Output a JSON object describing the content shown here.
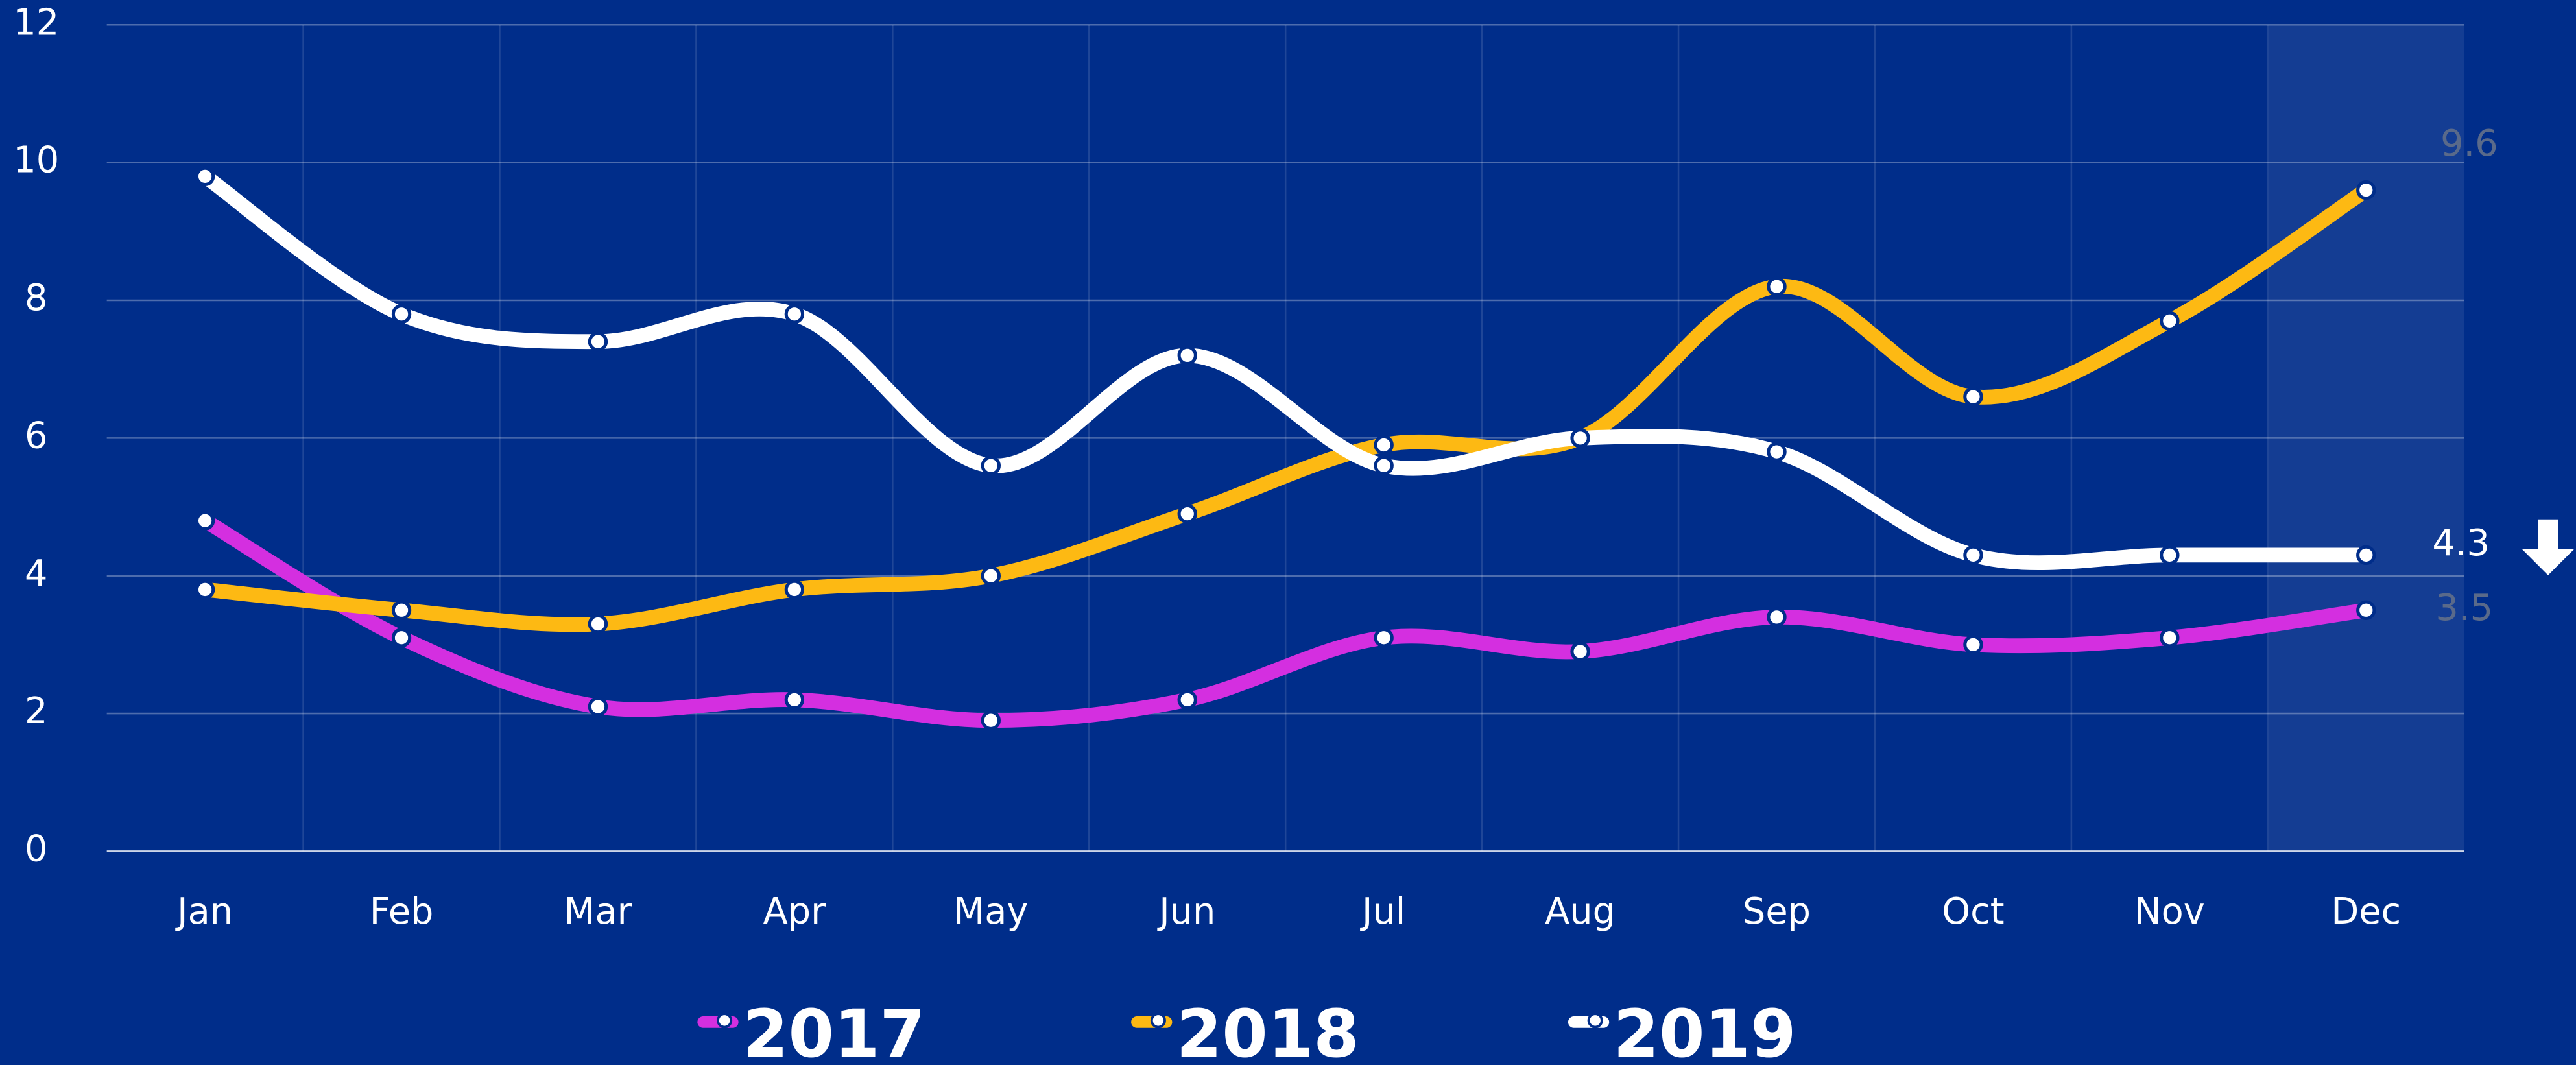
{
  "chart_data": {
    "type": "line",
    "categories": [
      "Jan",
      "Feb",
      "Mar",
      "Apr",
      "May",
      "Jun",
      "Jul",
      "Aug",
      "Sep",
      "Oct",
      "Nov",
      "Dec"
    ],
    "series": [
      {
        "name": "2017",
        "color": "#d42fe0",
        "values": [
          4.8,
          3.1,
          2.1,
          2.2,
          1.9,
          2.2,
          3.1,
          2.9,
          3.4,
          3.0,
          3.1,
          3.5
        ]
      },
      {
        "name": "2018",
        "color": "#fdb913",
        "values": [
          3.8,
          3.5,
          3.3,
          3.8,
          4.0,
          4.9,
          5.9,
          6.0,
          8.2,
          6.6,
          7.7,
          9.6
        ]
      },
      {
        "name": "2019",
        "color": "#ffffff",
        "values": [
          9.8,
          7.8,
          7.4,
          7.8,
          5.6,
          7.2,
          5.6,
          6.0,
          5.8,
          4.3,
          4.3,
          4.3
        ]
      }
    ],
    "ylim": [
      0,
      12
    ],
    "yticks": [
      0,
      2,
      4,
      6,
      8,
      10,
      12
    ],
    "grid": true,
    "legend": "bottom"
  }
}
